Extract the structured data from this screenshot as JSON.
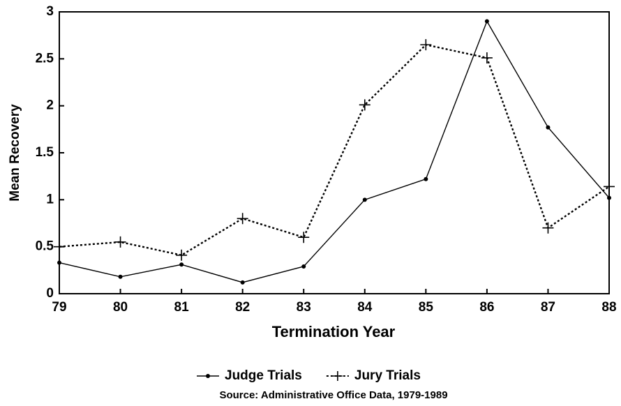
{
  "chart_data": {
    "type": "line",
    "x_label": "Termination Year",
    "y_label": "Mean Recovery",
    "source": "Source: Administrative Office Data, 1979-1989",
    "x": [
      79,
      80,
      81,
      82,
      83,
      84,
      85,
      86,
      87,
      88
    ],
    "xlim": [
      79,
      88
    ],
    "xticks": [
      79,
      80,
      81,
      82,
      83,
      84,
      85,
      86,
      87,
      88
    ],
    "ylim": [
      0,
      3
    ],
    "yticks": [
      0,
      0.5,
      1,
      1.5,
      2,
      2.5,
      3
    ],
    "series": [
      {
        "name": "Judge Trials",
        "color": "#000000",
        "dash": "solid",
        "marker": "dot",
        "values": [
          0.33,
          0.18,
          0.31,
          0.12,
          0.29,
          1.0,
          1.22,
          2.9,
          1.77,
          1.02
        ]
      },
      {
        "name": "Jury Trials",
        "color": "#000000",
        "dash": "dotted",
        "marker": "plus",
        "values": [
          0.5,
          0.55,
          0.41,
          0.8,
          0.6,
          2.01,
          2.65,
          2.51,
          0.7,
          1.14
        ]
      }
    ]
  }
}
